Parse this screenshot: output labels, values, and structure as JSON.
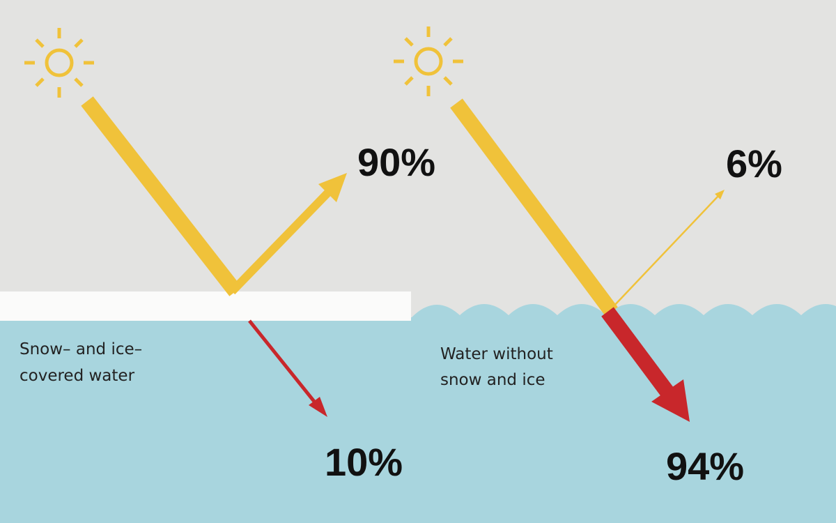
{
  "panels": [
    {
      "label_lines": [
        "Snow– and ice–",
        "covered water"
      ],
      "reflected": "90%",
      "absorbed": "10%"
    },
    {
      "label_lines": [
        "Water without",
        "snow and ice"
      ],
      "reflected": "6%",
      "absorbed": "94%"
    }
  ]
}
